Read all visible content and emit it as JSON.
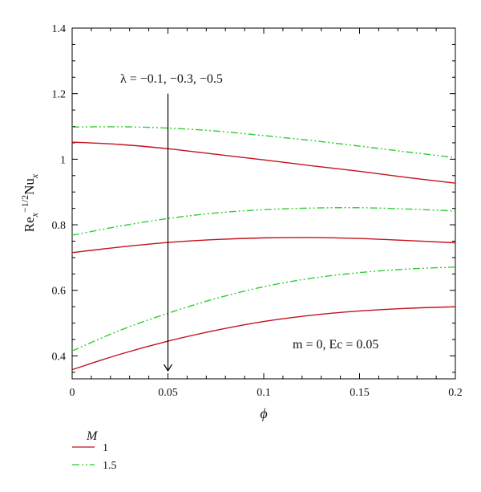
{
  "chart_data": {
    "type": "line",
    "xlabel": "ϕ",
    "ylabel": "Re_x^{-1/2}Nu_x",
    "xlim": [
      0,
      0.2
    ],
    "ylim": [
      0.33,
      1.4
    ],
    "x_ticks": [
      "0",
      "0.05",
      "0.1",
      "0.15",
      "0.2"
    ],
    "y_ticks": [
      "0.4",
      "0.6",
      "0.8",
      "1",
      "1.2",
      "1.4"
    ],
    "grid": false,
    "annotations": {
      "lambda": "λ = −0.1, −0.3, −0.5",
      "params": "m = 0, Ec = 0.05"
    },
    "arrow": {
      "x": 0.05,
      "y_from": 1.2,
      "y_to": 0.33
    },
    "legend": {
      "title": "M",
      "placement": "bottom-left",
      "entries": [
        {
          "label": "1",
          "color": "#c0141c",
          "dash": "solid"
        },
        {
          "label": "1.5",
          "color": "#33cc33",
          "dash": "dashdotdot"
        }
      ]
    },
    "series": [
      {
        "legend": "1",
        "lambda": "-0.1",
        "color": "#c0141c",
        "dash": "solid",
        "x": [
          0,
          0.025,
          0.05,
          0.075,
          0.1,
          0.125,
          0.15,
          0.175,
          0.2
        ],
        "y": [
          1.052,
          1.045,
          1.032,
          1.015,
          0.998,
          0.98,
          0.963,
          0.944,
          0.927
        ]
      },
      {
        "legend": "1",
        "lambda": "-0.3",
        "color": "#c0141c",
        "dash": "solid",
        "x": [
          0,
          0.025,
          0.05,
          0.075,
          0.1,
          0.125,
          0.15,
          0.175,
          0.2
        ],
        "y": [
          0.715,
          0.732,
          0.746,
          0.755,
          0.76,
          0.761,
          0.758,
          0.752,
          0.745
        ]
      },
      {
        "legend": "1",
        "lambda": "-0.5",
        "color": "#c0141c",
        "dash": "solid",
        "x": [
          0,
          0.025,
          0.05,
          0.075,
          0.1,
          0.125,
          0.15,
          0.175,
          0.2
        ],
        "y": [
          0.358,
          0.405,
          0.445,
          0.478,
          0.505,
          0.524,
          0.537,
          0.545,
          0.55
        ]
      },
      {
        "legend": "1.5",
        "lambda": "-0.1",
        "color": "#33cc33",
        "dash": "dashdotdot",
        "x": [
          0,
          0.025,
          0.05,
          0.075,
          0.1,
          0.125,
          0.15,
          0.175,
          0.2
        ],
        "y": [
          1.098,
          1.099,
          1.095,
          1.086,
          1.072,
          1.057,
          1.04,
          1.022,
          1.005
        ]
      },
      {
        "legend": "1.5",
        "lambda": "-0.3",
        "color": "#33cc33",
        "dash": "dashdotdot",
        "x": [
          0,
          0.025,
          0.05,
          0.075,
          0.1,
          0.125,
          0.15,
          0.175,
          0.2
        ],
        "y": [
          0.768,
          0.796,
          0.819,
          0.836,
          0.846,
          0.851,
          0.852,
          0.848,
          0.842
        ]
      },
      {
        "legend": "1.5",
        "lambda": "-0.5",
        "color": "#33cc33",
        "dash": "dashdotdot",
        "x": [
          0,
          0.025,
          0.05,
          0.075,
          0.1,
          0.125,
          0.15,
          0.175,
          0.2
        ],
        "y": [
          0.415,
          0.478,
          0.53,
          0.575,
          0.611,
          0.637,
          0.654,
          0.665,
          0.671
        ]
      }
    ]
  }
}
